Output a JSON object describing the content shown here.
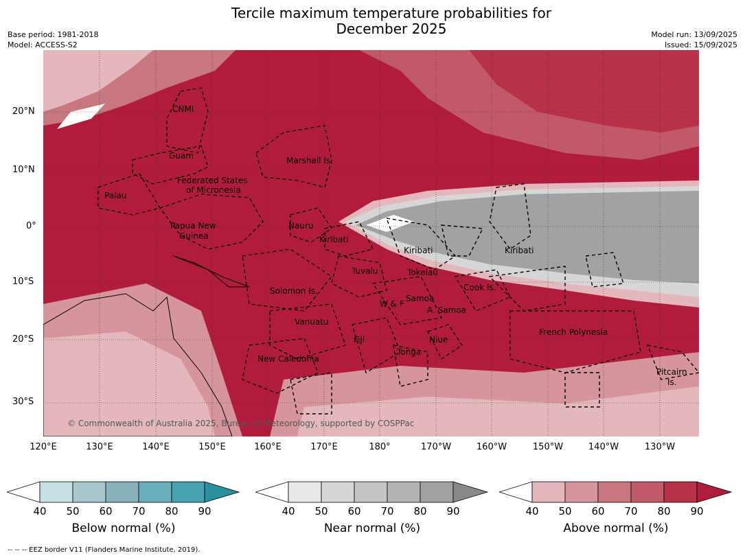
{
  "title_line1": "Tercile maximum temperature probabilities for",
  "title_line2": "December 2025",
  "meta_left": [
    "Base period: 1981-2018",
    "Model: ACCESS-S2"
  ],
  "meta_right": [
    "Model run: 13/09/2025",
    "Issued: 15/09/2025"
  ],
  "lat_ticks": [
    "20°N",
    "10°N",
    "0°",
    "10°S",
    "20°S",
    "30°S"
  ],
  "lon_ticks": [
    "120°E",
    "130°E",
    "140°E",
    "150°E",
    "160°E",
    "170°E",
    "180°",
    "170°W",
    "160°W",
    "150°W",
    "140°W",
    "130°W"
  ],
  "regions": [
    {
      "name": "CNMI"
    },
    {
      "name": "Guam"
    },
    {
      "name": "Marshall Is."
    },
    {
      "name": "Federated States"
    },
    {
      "name": "of Micronesia"
    },
    {
      "name": "Palau"
    },
    {
      "name": "Papua New"
    },
    {
      "name": "Guinea"
    },
    {
      "name": "Nauru"
    },
    {
      "name": "Kiribati"
    },
    {
      "name": "Kiribati"
    },
    {
      "name": "Kiribati"
    },
    {
      "name": "Tuvalu"
    },
    {
      "name": "Tokelau"
    },
    {
      "name": "Solomon Is."
    },
    {
      "name": "Cook Is."
    },
    {
      "name": "W & F"
    },
    {
      "name": "Samoa"
    },
    {
      "name": "A. Samoa"
    },
    {
      "name": "Vanuatu"
    },
    {
      "name": "Fiji"
    },
    {
      "name": "Niue"
    },
    {
      "name": "French Polynesia"
    },
    {
      "name": "Tonga"
    },
    {
      "name": "New Caledonia"
    },
    {
      "name": "Pitcairn"
    },
    {
      "name": "Is."
    }
  ],
  "copyright": "© Commonwealth of Australia 2025, Bureau of Meteorology, supported by COSPPac",
  "colorbars": [
    {
      "title": "Below normal (%)",
      "ticks": [
        "40",
        "50",
        "60",
        "70",
        "80",
        "90"
      ],
      "colors": [
        "#c6e0e6",
        "#a7c7cc",
        "#88b3bd",
        "#6aaebc",
        "#46a1b0",
        "#2b8f9e"
      ]
    },
    {
      "title": "Near normal (%)",
      "ticks": [
        "40",
        "50",
        "60",
        "70",
        "80",
        "90"
      ],
      "colors": [
        "#e8e8e8",
        "#d6d6d6",
        "#c5c5c5",
        "#b4b4b4",
        "#a2a2a2",
        "#888888"
      ]
    },
    {
      "title": "Above normal (%)",
      "ticks": [
        "40",
        "50",
        "60",
        "70",
        "80",
        "90"
      ],
      "colors": [
        "#e3b7bc",
        "#d6959c",
        "#c8767f",
        "#c1596a",
        "#b83148",
        "#b11c3c"
      ]
    }
  ],
  "footnote": "--  --  -- EEZ border V11 (Flanders Marine Institute, 2019).",
  "colors": {
    "above_strong": "#b11c3c",
    "above_mid": "#c8767f",
    "above_light": "#e3b7bc",
    "near": "#a2a2a2",
    "near_light": "#d6d6d6"
  }
}
